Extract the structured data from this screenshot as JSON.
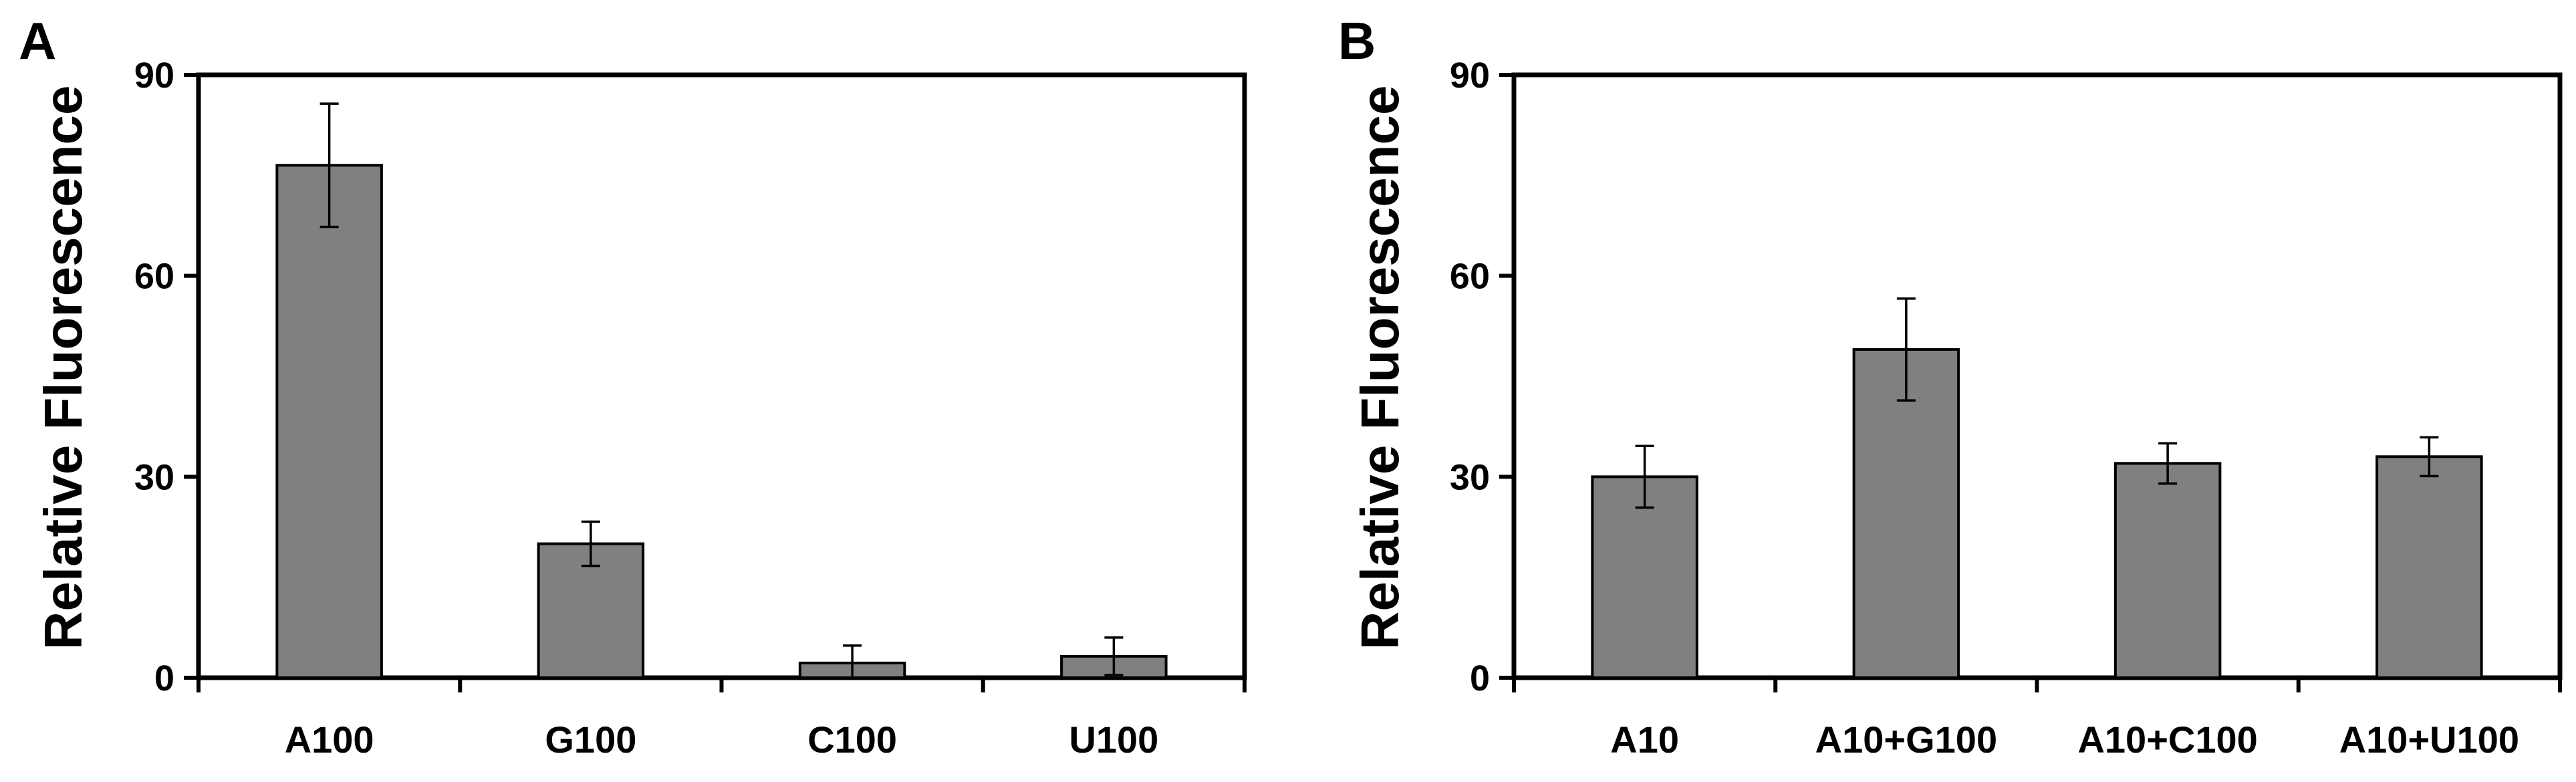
{
  "chart_data": [
    {
      "panel": "A",
      "type": "bar",
      "title": "",
      "xlabel": "",
      "ylabel": "Relative Fluorescence",
      "ylim": [
        0,
        90
      ],
      "yticks": [
        "0",
        "30",
        "60",
        "90"
      ],
      "grid": false,
      "categories": [
        "A100",
        "G100",
        "C100",
        "U100"
      ],
      "values": [
        76.5,
        20,
        2.2,
        3.2
      ],
      "errors": [
        9.2,
        3.3,
        2.6,
        2.8
      ],
      "bar_color": "#808080"
    },
    {
      "panel": "B",
      "type": "bar",
      "title": "",
      "xlabel": "",
      "ylabel": "Relative Fluorescence",
      "ylim": [
        0,
        90
      ],
      "yticks": [
        "0",
        "30",
        "60",
        "90"
      ],
      "grid": false,
      "categories": [
        "A10",
        "A10+G100",
        "A10+C100",
        "A10+U100"
      ],
      "values": [
        30,
        49,
        32,
        33
      ],
      "errors": [
        4.6,
        7.6,
        3.0,
        2.9
      ],
      "bar_color": "#808080"
    }
  ]
}
